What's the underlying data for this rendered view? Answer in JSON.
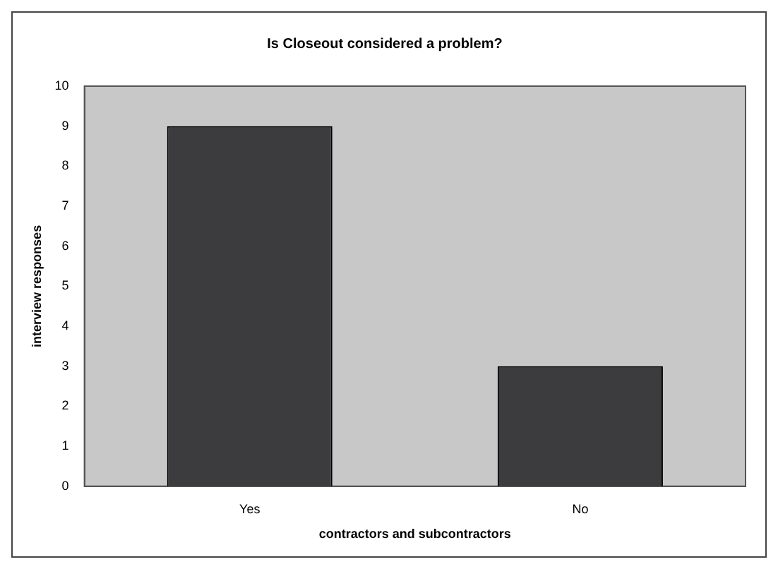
{
  "chart_data": {
    "type": "bar",
    "title": "Is Closeout considered a problem?",
    "xlabel": "contractors and subcontractors",
    "ylabel": "interview responses",
    "categories": [
      "Yes",
      "No"
    ],
    "values": [
      9,
      3
    ],
    "color": "#3c3c3e",
    "ylim": [
      0,
      10
    ],
    "yticks": [
      0,
      1,
      2,
      3,
      4,
      5,
      6,
      7,
      8,
      9,
      10
    ],
    "grid": false,
    "legend": false
  }
}
